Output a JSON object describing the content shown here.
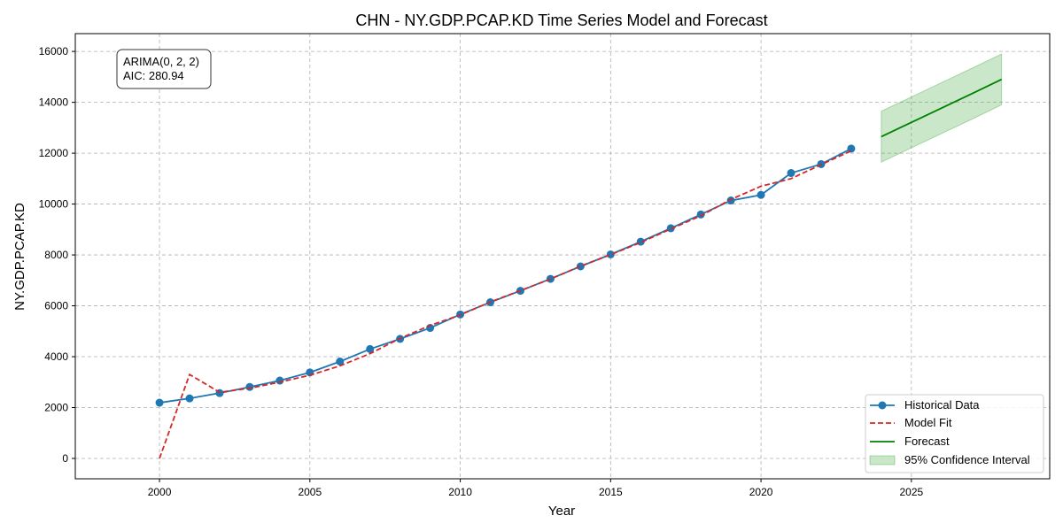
{
  "chart_data": {
    "type": "line",
    "title": "CHN - NY.GDP.PCAP.KD Time Series Model and Forecast",
    "xlabel": "Year",
    "ylabel": "NY.GDP.PCAP.KD",
    "xlim": [
      1997.2,
      2029.6
    ],
    "ylim": [
      -800,
      16700
    ],
    "x_ticks": [
      2000,
      2005,
      2010,
      2015,
      2020,
      2025
    ],
    "y_ticks": [
      0,
      2000,
      4000,
      6000,
      8000,
      10000,
      12000,
      14000,
      16000
    ],
    "grid": true,
    "legend_position": "lower-right",
    "annotation_lines": [
      "ARIMA(0, 2, 2)",
      "AIC: 280.94"
    ],
    "series": [
      {
        "name": "Historical Data",
        "style": "line-with-markers",
        "color": "#1f77b4",
        "x": [
          2000,
          2001,
          2002,
          2003,
          2004,
          2005,
          2006,
          2007,
          2008,
          2009,
          2010,
          2011,
          2012,
          2013,
          2014,
          2015,
          2016,
          2017,
          2018,
          2019,
          2020,
          2021,
          2022,
          2023
        ],
        "y": [
          2190,
          2360,
          2570,
          2810,
          3060,
          3380,
          3810,
          4300,
          4700,
          5130,
          5660,
          6140,
          6590,
          7060,
          7550,
          8020,
          8520,
          9050,
          9590,
          10140,
          10360,
          11220,
          11570,
          12180
        ]
      },
      {
        "name": "Model Fit",
        "style": "dashed",
        "color": "#d62728",
        "x": [
          2000,
          2001,
          2002,
          2003,
          2004,
          2005,
          2006,
          2007,
          2008,
          2009,
          2010,
          2011,
          2012,
          2013,
          2014,
          2015,
          2016,
          2017,
          2018,
          2019,
          2020,
          2021,
          2022,
          2023
        ],
        "y": [
          0,
          3300,
          2600,
          2760,
          3000,
          3270,
          3640,
          4120,
          4720,
          5230,
          5640,
          6150,
          6600,
          7050,
          7560,
          8010,
          8490,
          9020,
          9540,
          10180,
          10700,
          11000,
          11550,
          12090
        ]
      },
      {
        "name": "Forecast",
        "style": "solid",
        "color": "#008000",
        "x": [
          2024,
          2025,
          2026,
          2027,
          2028
        ],
        "y": [
          12650,
          13210,
          13770,
          14330,
          14900
        ]
      }
    ],
    "confidence_interval": {
      "name": "95% Confidence Interval",
      "color": "#2ca02c",
      "x": [
        2024,
        2025,
        2026,
        2027,
        2028
      ],
      "lower": [
        11650,
        12210,
        12770,
        13330,
        13900
      ],
      "upper": [
        13650,
        14210,
        14770,
        15330,
        15900
      ]
    }
  }
}
